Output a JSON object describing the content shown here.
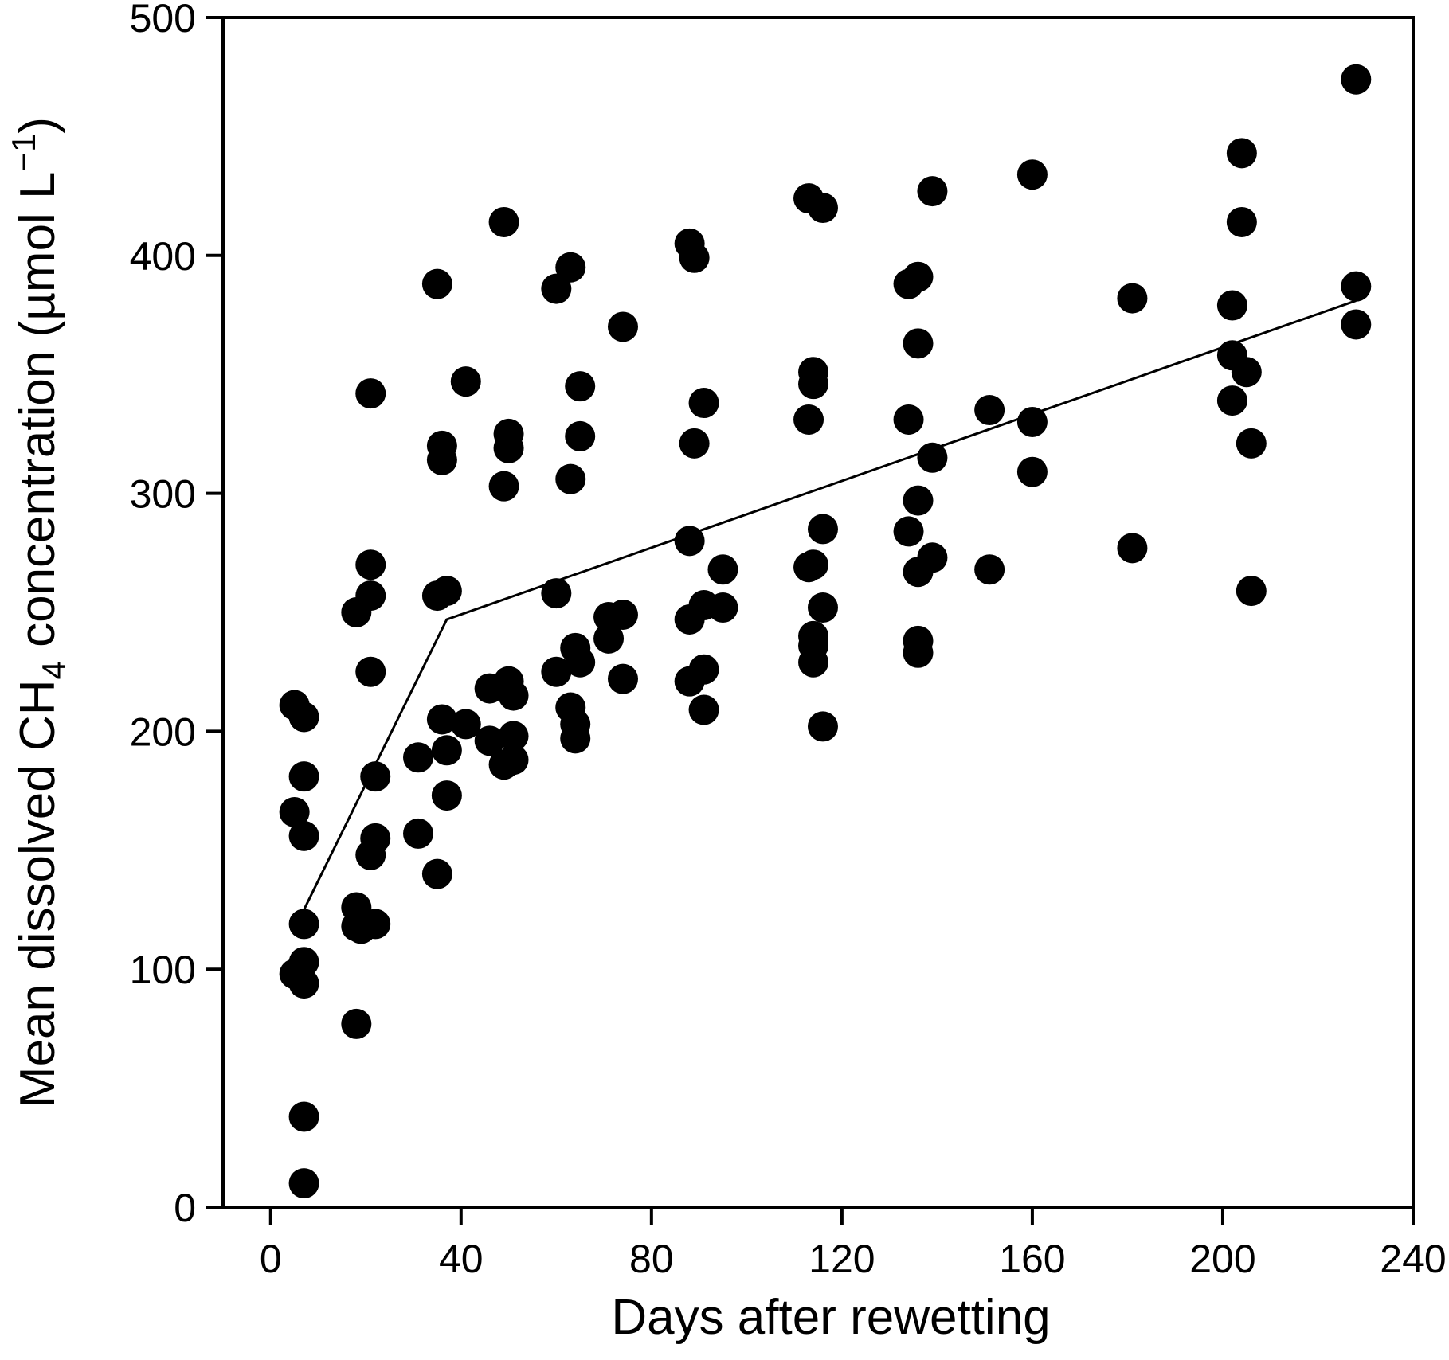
{
  "chart_data": {
    "type": "scatter",
    "title": "",
    "xlabel": "Days after rewetting",
    "ylabel": {
      "prefix": "Mean dissolved CH",
      "subscript": "4",
      "middle": " concentration (µmol L",
      "superscript": "−1",
      "suffix": ")"
    },
    "xlim": [
      -10,
      240
    ],
    "ylim": [
      0,
      500
    ],
    "x_ticks": [
      0,
      40,
      80,
      120,
      160,
      200,
      240
    ],
    "y_ticks": [
      0,
      100,
      200,
      300,
      400,
      500
    ],
    "grid": false,
    "legend": "none",
    "colors": {
      "points": "#000000",
      "line": "#000000",
      "axes": "#000000"
    },
    "series": [
      {
        "type": "scatter",
        "points": [
          [
            5,
            211
          ],
          [
            5,
            166
          ],
          [
            5,
            98
          ],
          [
            7,
            206
          ],
          [
            7,
            181
          ],
          [
            7,
            156
          ],
          [
            7,
            119
          ],
          [
            7,
            103
          ],
          [
            7,
            94
          ],
          [
            7,
            38
          ],
          [
            7,
            10
          ],
          [
            18,
            250
          ],
          [
            18,
            126
          ],
          [
            18,
            118
          ],
          [
            18,
            77
          ],
          [
            19,
            117
          ],
          [
            21,
            342
          ],
          [
            21,
            270
          ],
          [
            21,
            257
          ],
          [
            21,
            225
          ],
          [
            21,
            148
          ],
          [
            22,
            181
          ],
          [
            22,
            155
          ],
          [
            22,
            119
          ],
          [
            31,
            189
          ],
          [
            31,
            157
          ],
          [
            35,
            388
          ],
          [
            35,
            257
          ],
          [
            35,
            140
          ],
          [
            36,
            320
          ],
          [
            36,
            314
          ],
          [
            36,
            205
          ],
          [
            37,
            259
          ],
          [
            37,
            192
          ],
          [
            37,
            173
          ],
          [
            41,
            347
          ],
          [
            41,
            203
          ],
          [
            46,
            218
          ],
          [
            46,
            196
          ],
          [
            49,
            414
          ],
          [
            49,
            303
          ],
          [
            49,
            186
          ],
          [
            50,
            325
          ],
          [
            50,
            319
          ],
          [
            50,
            221
          ],
          [
            51,
            215
          ],
          [
            51,
            198
          ],
          [
            51,
            188
          ],
          [
            60,
            386
          ],
          [
            60,
            258
          ],
          [
            60,
            225
          ],
          [
            63,
            395
          ],
          [
            63,
            306
          ],
          [
            63,
            210
          ],
          [
            64,
            235
          ],
          [
            64,
            203
          ],
          [
            64,
            197
          ],
          [
            65,
            345
          ],
          [
            65,
            324
          ],
          [
            65,
            229
          ],
          [
            71,
            248
          ],
          [
            71,
            239
          ],
          [
            74,
            370
          ],
          [
            74,
            249
          ],
          [
            74,
            222
          ],
          [
            88,
            405
          ],
          [
            88,
            280
          ],
          [
            88,
            247
          ],
          [
            88,
            221
          ],
          [
            89,
            399
          ],
          [
            89,
            321
          ],
          [
            91,
            338
          ],
          [
            91,
            253
          ],
          [
            91,
            226
          ],
          [
            91,
            209
          ],
          [
            95,
            268
          ],
          [
            95,
            252
          ],
          [
            113,
            424
          ],
          [
            113,
            331
          ],
          [
            113,
            269
          ],
          [
            114,
            351
          ],
          [
            114,
            346
          ],
          [
            114,
            270
          ],
          [
            114,
            240
          ],
          [
            114,
            236
          ],
          [
            114,
            229
          ],
          [
            116,
            420
          ],
          [
            116,
            285
          ],
          [
            116,
            252
          ],
          [
            116,
            202
          ],
          [
            134,
            388
          ],
          [
            134,
            331
          ],
          [
            134,
            284
          ],
          [
            136,
            391
          ],
          [
            136,
            363
          ],
          [
            136,
            297
          ],
          [
            136,
            267
          ],
          [
            136,
            238
          ],
          [
            136,
            233
          ],
          [
            139,
            427
          ],
          [
            139,
            315
          ],
          [
            139,
            273
          ],
          [
            151,
            335
          ],
          [
            151,
            268
          ],
          [
            160,
            434
          ],
          [
            160,
            330
          ],
          [
            160,
            309
          ],
          [
            181,
            382
          ],
          [
            181,
            277
          ],
          [
            202,
            379
          ],
          [
            202,
            358
          ],
          [
            202,
            339
          ],
          [
            204,
            443
          ],
          [
            204,
            414
          ],
          [
            205,
            351
          ],
          [
            206,
            321
          ],
          [
            206,
            259
          ],
          [
            228,
            474
          ],
          [
            228,
            387
          ],
          [
            228,
            371
          ]
        ]
      },
      {
        "type": "line",
        "points": [
          [
            7,
            125
          ],
          [
            37,
            247
          ],
          [
            228,
            381
          ]
        ]
      }
    ]
  }
}
